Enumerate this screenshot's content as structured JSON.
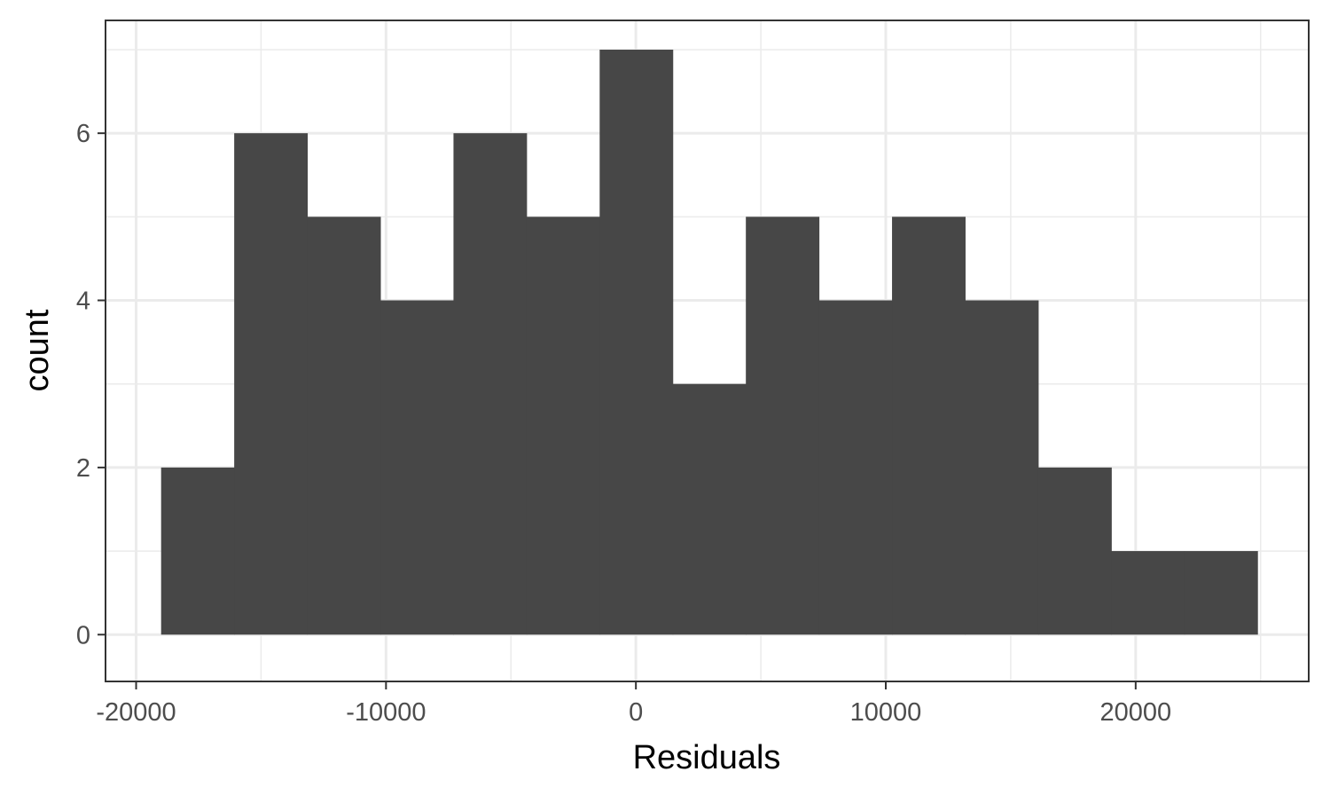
{
  "chart_data": {
    "type": "bar",
    "subtype": "histogram",
    "xlabel": "Residuals",
    "ylabel": "count",
    "xlim": [
      -21225,
      26925
    ],
    "ylim": [
      -0.56,
      7.35
    ],
    "x_ticks": [
      -20000,
      -10000,
      0,
      10000,
      20000
    ],
    "x_tick_labels": [
      "-20000",
      "-10000",
      "0",
      "10000",
      "20000"
    ],
    "x_minor_ticks": [
      -15000,
      -5000,
      5000,
      15000,
      25000
    ],
    "y_ticks": [
      0,
      2,
      4,
      6
    ],
    "y_tick_labels": [
      "0",
      "2",
      "4",
      "6"
    ],
    "y_minor_ticks": [
      1,
      3,
      5,
      7
    ],
    "grid": true,
    "bar_color": "#474747",
    "bins": [
      {
        "x0": -19000,
        "x1": -16075,
        "count": 2
      },
      {
        "x0": -16075,
        "x1": -13150,
        "count": 6
      },
      {
        "x0": -13150,
        "x1": -10225,
        "count": 5
      },
      {
        "x0": -10225,
        "x1": -7300,
        "count": 4
      },
      {
        "x0": -7300,
        "x1": -4375,
        "count": 6
      },
      {
        "x0": -4375,
        "x1": -1450,
        "count": 5
      },
      {
        "x0": -1450,
        "x1": 1475,
        "count": 7
      },
      {
        "x0": 1475,
        "x1": 4400,
        "count": 3
      },
      {
        "x0": 4400,
        "x1": 7325,
        "count": 5
      },
      {
        "x0": 7325,
        "x1": 10250,
        "count": 4
      },
      {
        "x0": 10250,
        "x1": 13175,
        "count": 5
      },
      {
        "x0": 13175,
        "x1": 16100,
        "count": 4
      },
      {
        "x0": 16100,
        "x1": 19025,
        "count": 2
      },
      {
        "x0": 19025,
        "x1": 21950,
        "count": 1
      },
      {
        "x0": 21950,
        "x1": 24875,
        "count": 1
      }
    ]
  }
}
